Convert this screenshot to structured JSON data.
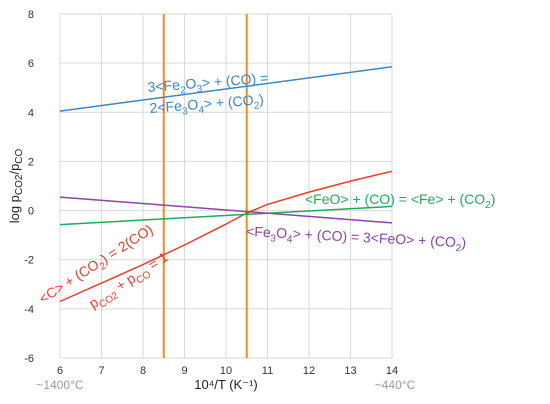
{
  "chart_data": {
    "type": "line",
    "xlabel": "10⁴/T (K⁻¹)",
    "ylabel": "log pCO2/pCO",
    "xlim": [
      6,
      14
    ],
    "ylim": [
      -6,
      8
    ],
    "x_ticks": [
      6,
      7,
      8,
      9,
      10,
      11,
      12,
      13,
      14
    ],
    "y_ticks": [
      -6,
      -4,
      -2,
      0,
      2,
      4,
      6,
      8
    ],
    "grid": true,
    "temperature_labels": {
      "left": "~1400°C",
      "right": "~440°C"
    },
    "vertical_lines": [
      {
        "x": 8.5,
        "color": "#f28c1e"
      },
      {
        "x": 10.5,
        "color": "#f28c1e"
      }
    ],
    "series": [
      {
        "color": "#3d86c6",
        "x": [
          6,
          14
        ],
        "y": [
          4.05,
          5.85
        ]
      },
      {
        "color": "#ed3b2b",
        "x": [
          6,
          7,
          8,
          9,
          10,
          10.5,
          11,
          12,
          13,
          14
        ],
        "y": [
          -3.7,
          -2.95,
          -2.2,
          -1.4,
          -0.55,
          -0.1,
          0.25,
          0.75,
          1.2,
          1.6
        ]
      },
      {
        "color": "#1aad5c",
        "x": [
          6,
          14
        ],
        "y": [
          -0.57,
          0.17
        ]
      },
      {
        "color": "#8b44a8",
        "x": [
          6,
          14
        ],
        "y": [
          0.55,
          -0.5
        ]
      }
    ],
    "annotations": [
      {
        "color": "#3d86c6",
        "parts": [
          {
            "t": "3<Fe"
          },
          {
            "t": "2",
            "sub": true
          },
          {
            "t": "O"
          },
          {
            "t": "3",
            "sub": true
          },
          {
            "t": "> + (CO) ="
          }
        ]
      },
      {
        "color": "#3d86c6",
        "parts": [
          {
            "t": "2<Fe"
          },
          {
            "t": "3",
            "sub": true
          },
          {
            "t": "O"
          },
          {
            "t": "4",
            "sub": true
          },
          {
            "t": "> + (CO"
          },
          {
            "t": "2",
            "sub": true
          },
          {
            "t": ")"
          }
        ]
      },
      {
        "color": "#1aad5c",
        "parts": [
          {
            "t": "<FeO> + (CO) = <Fe> + (CO"
          },
          {
            "t": "2",
            "sub": true
          },
          {
            "t": ")"
          }
        ]
      },
      {
        "color": "#8b44a8",
        "parts": [
          {
            "t": "<Fe"
          },
          {
            "t": "3",
            "sub": true
          },
          {
            "t": "O"
          },
          {
            "t": "4",
            "sub": true
          },
          {
            "t": "> + (CO) = 3<FeO> + (CO"
          },
          {
            "t": "2",
            "sub": true
          },
          {
            "t": ")"
          }
        ]
      },
      {
        "color": "#ed3b2b",
        "parts": [
          {
            "t": "<C> + (CO"
          },
          {
            "t": "2",
            "sub": true
          },
          {
            "t": ") = 2(CO)"
          }
        ]
      },
      {
        "color": "#ed3b2b",
        "parts": [
          {
            "t": "p"
          },
          {
            "t": "CO2",
            "sub": true
          },
          {
            "t": " + p"
          },
          {
            "t": "CO",
            "sub": true
          },
          {
            "t": " = 1"
          }
        ]
      }
    ]
  }
}
